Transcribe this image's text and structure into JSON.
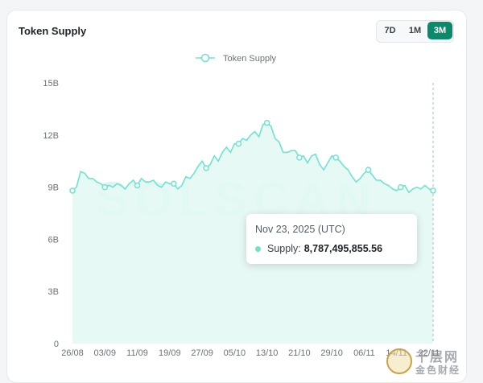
{
  "card": {
    "title": "Token Supply"
  },
  "range": {
    "options": [
      "7D",
      "1M",
      "3M"
    ],
    "active": "3M"
  },
  "legend": {
    "label": "Token Supply"
  },
  "watermark": "SOLSCAN",
  "tooltip": {
    "date": "Nov 23, 2025 (UTC)",
    "label": "Supply:",
    "value": "8,787,495,855.56"
  },
  "colors": {
    "line": "#6ee3d0",
    "fill": "#e3f8f3",
    "accent": "#0b8a6b",
    "crosshair": "#8bcad8"
  },
  "chart_data": {
    "type": "area",
    "title": "Token Supply",
    "xlabel": "",
    "ylabel": "",
    "ylim": [
      0,
      15
    ],
    "yticks": [
      "0",
      "3B",
      "6B",
      "9B",
      "12B",
      "15B"
    ],
    "xticks": [
      "26/08",
      "03/09",
      "11/09",
      "19/09",
      "27/09",
      "05/10",
      "13/10",
      "21/10",
      "29/10",
      "06/11",
      "14/11",
      "22/11"
    ],
    "series": [
      {
        "name": "Token Supply",
        "unit": "B",
        "x": [
          "26/08",
          "27/08",
          "28/08",
          "29/08",
          "30/08",
          "31/08",
          "01/09",
          "02/09",
          "03/09",
          "04/09",
          "05/09",
          "06/09",
          "07/09",
          "08/09",
          "09/09",
          "10/09",
          "11/09",
          "12/09",
          "13/09",
          "14/09",
          "15/09",
          "16/09",
          "17/09",
          "18/09",
          "19/09",
          "20/09",
          "21/09",
          "22/09",
          "23/09",
          "24/09",
          "25/09",
          "26/09",
          "27/09",
          "28/09",
          "29/09",
          "30/09",
          "01/10",
          "02/10",
          "03/10",
          "04/10",
          "05/10",
          "06/10",
          "07/10",
          "08/10",
          "09/10",
          "10/10",
          "11/10",
          "12/10",
          "13/10",
          "14/10",
          "15/10",
          "16/10",
          "17/10",
          "18/10",
          "19/10",
          "20/10",
          "21/10",
          "22/10",
          "23/10",
          "24/10",
          "25/10",
          "26/10",
          "27/10",
          "28/10",
          "29/10",
          "30/10",
          "31/10",
          "01/11",
          "02/11",
          "03/11",
          "04/11",
          "05/11",
          "06/11",
          "07/11",
          "08/11",
          "09/11",
          "10/11",
          "11/11",
          "12/11",
          "13/11",
          "14/11",
          "15/11",
          "16/11",
          "17/11",
          "18/11",
          "19/11",
          "20/11",
          "21/11",
          "22/11",
          "23/11"
        ],
        "values": [
          8.8,
          9.0,
          9.9,
          9.8,
          9.5,
          9.5,
          9.3,
          9.2,
          9.0,
          9.1,
          9.0,
          9.2,
          9.1,
          8.9,
          9.2,
          9.4,
          9.1,
          9.5,
          9.3,
          9.3,
          9.4,
          9.1,
          9.0,
          9.3,
          9.2,
          9.2,
          8.9,
          9.1,
          9.6,
          9.5,
          9.8,
          10.2,
          10.5,
          10.1,
          10.3,
          10.8,
          10.5,
          11.0,
          11.3,
          11.0,
          11.5,
          11.5,
          11.8,
          11.7,
          12.0,
          12.2,
          11.9,
          12.6,
          12.7,
          12.5,
          11.8,
          11.6,
          11.0,
          11.0,
          11.1,
          11.1,
          10.7,
          10.8,
          10.4,
          10.8,
          10.9,
          10.3,
          10.0,
          10.4,
          10.8,
          10.7,
          10.5,
          10.2,
          10.0,
          9.6,
          9.3,
          9.5,
          9.8,
          10.0,
          9.7,
          9.4,
          9.4,
          9.2,
          9.1,
          8.9,
          8.8,
          9.0,
          9.1,
          8.7,
          8.9,
          9.0,
          8.9,
          9.1,
          8.9,
          8.8
        ]
      }
    ]
  }
}
